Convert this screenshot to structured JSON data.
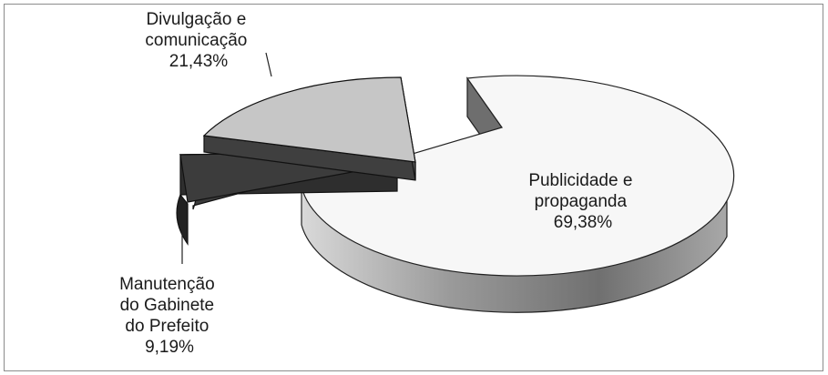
{
  "chart_data": {
    "type": "pie",
    "title": "",
    "slices": [
      {
        "label_lines": [
          "Publicidade e",
          "propaganda"
        ],
        "value_text": "69,38%",
        "value": 69.38,
        "color": "#f7f7f7"
      },
      {
        "label_lines": [
          "Manutenção",
          "do Gabinete",
          "do Prefeito"
        ],
        "value_text": "9,19%",
        "value": 9.19,
        "color": "#3c3c3c"
      },
      {
        "label_lines": [
          "Divulgação e",
          "comunicação"
        ],
        "value_text": "21,43%",
        "value": 21.43,
        "color": "#c6c6c6"
      }
    ],
    "exploded": true,
    "three_d": true,
    "legend": "none"
  }
}
